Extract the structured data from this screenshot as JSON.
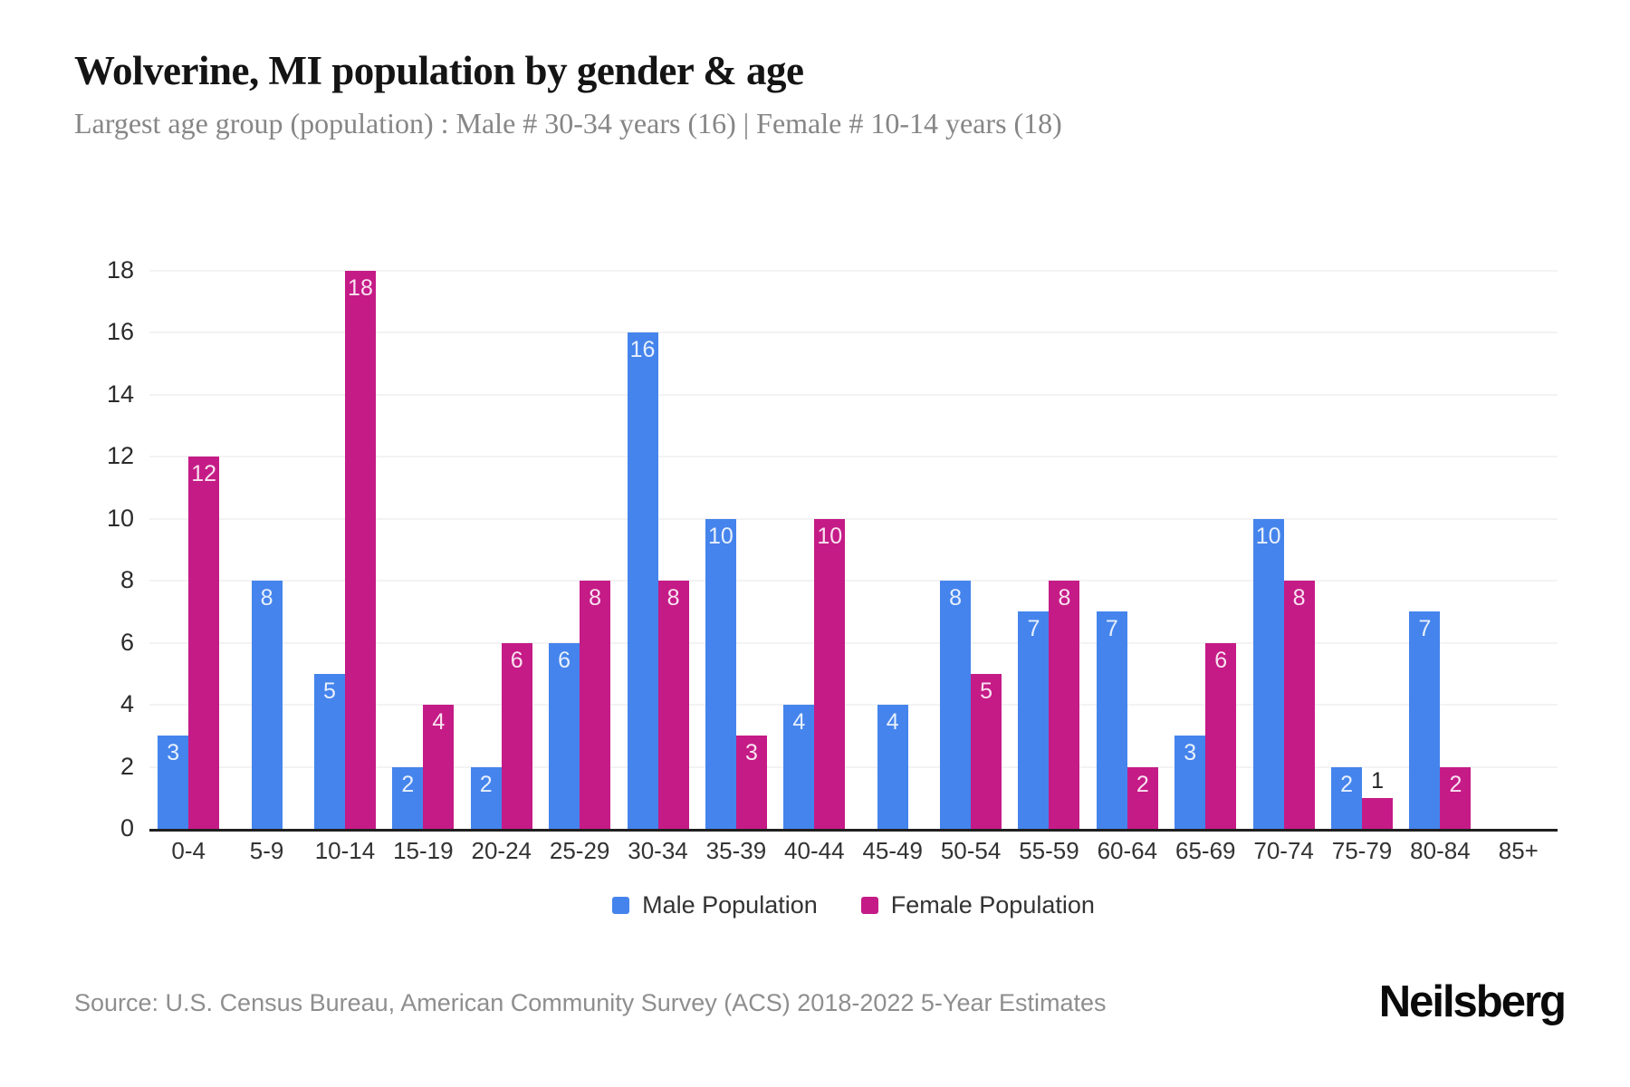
{
  "header": {
    "title": "Wolverine, MI population by gender & age",
    "subtitle": "Largest age group (population) : Male # 30-34 years (16) | Female # 10-14 years (18)"
  },
  "chart_data": {
    "type": "bar",
    "title": "Wolverine, MI population by gender & age",
    "categories": [
      "0-4",
      "5-9",
      "10-14",
      "15-19",
      "20-24",
      "25-29",
      "30-34",
      "35-39",
      "40-44",
      "45-49",
      "50-54",
      "55-59",
      "60-64",
      "65-69",
      "70-74",
      "75-79",
      "80-84",
      "85+"
    ],
    "series": [
      {
        "name": "Male Population",
        "color": "#4584ec",
        "values": [
          3,
          8,
          5,
          2,
          2,
          6,
          16,
          10,
          4,
          4,
          8,
          7,
          7,
          3,
          10,
          2,
          7,
          0
        ]
      },
      {
        "name": "Female Population",
        "color": "#c51b87",
        "values": [
          12,
          0,
          18,
          4,
          6,
          8,
          8,
          3,
          10,
          0,
          5,
          8,
          2,
          6,
          8,
          1,
          2,
          0
        ]
      }
    ],
    "xlabel": "",
    "ylabel": "",
    "ylim": [
      0,
      18
    ],
    "ytick_step": 2,
    "grid": "horizontal-light",
    "legend_position": "bottom-center",
    "value_labels": "inside bar top, white; bars of value 1 labeled above bar in dark"
  },
  "footer": {
    "source": "Source: U.S. Census Bureau, American Community Survey (ACS) 2018-2022 5-Year Estimates",
    "brand": "Neilsberg"
  }
}
